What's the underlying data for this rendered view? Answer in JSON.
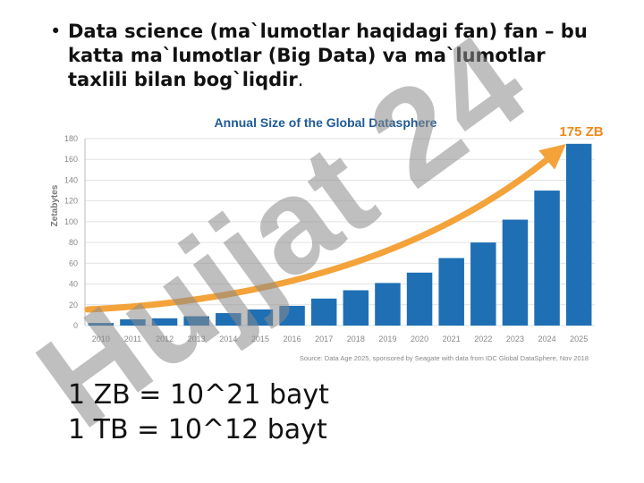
{
  "bullet": {
    "bold": "Data science (ma`lumotlar haqidagi fan) fan – bu katta ma`lumotlar (Big Data) va ma`lumotlar taxlili bilan bog`liqdir",
    "rest": "."
  },
  "chart_data": {
    "type": "bar",
    "title": "Annual Size of the Global Datasphere",
    "ylabel": "Zetabytes",
    "categories": [
      "2010",
      "2011",
      "2012",
      "2013",
      "2014",
      "2015",
      "2016",
      "2017",
      "2018",
      "2019",
      "2020",
      "2021",
      "2022",
      "2023",
      "2024",
      "2025"
    ],
    "values": [
      2.5,
      6,
      7,
      9,
      12,
      15.5,
      19,
      26,
      34,
      41,
      51,
      65,
      80,
      102,
      130,
      175
    ],
    "color": "#1f6fb5",
    "ylim": [
      0,
      180
    ],
    "yticks": [
      0,
      20,
      40,
      60,
      80,
      100,
      120,
      140,
      160,
      180
    ],
    "grid": true,
    "annotation": "175 ZB",
    "source": "Source: Data Age 2025, sponsored by Seagate with data from IDC Global DataSphere, Nov 2018"
  },
  "formulas": [
    "1 ZB = 10^21 bayt",
    "1 TB = 10^12 bayt"
  ],
  "watermark": "Hujjat 24"
}
